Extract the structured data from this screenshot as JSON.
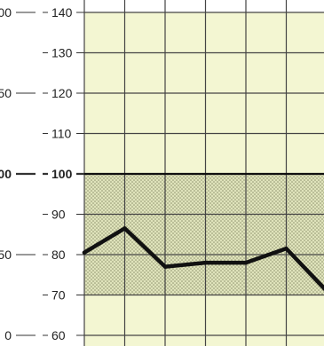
{
  "chart_data": {
    "type": "line",
    "x": [
      0,
      1,
      2,
      3,
      4,
      5,
      6
    ],
    "y": [
      80.5,
      86.5,
      77,
      78,
      78,
      81.5,
      71
    ],
    "ylim": [
      60,
      140
    ],
    "y_ticks": [
      "60",
      "70",
      "80",
      "90",
      "100",
      "110",
      "120",
      "130",
      "140"
    ],
    "left_ticks": [
      {
        "at": 60,
        "label": "0"
      },
      {
        "at": 80,
        "label": "50"
      },
      {
        "at": 100,
        "label": "00"
      },
      {
        "at": 120,
        "label": "50"
      },
      {
        "at": 140,
        "label": "00"
      }
    ],
    "reference_value": 100,
    "shaded_band": [
      70,
      100
    ],
    "grid": true,
    "colors": {
      "plot_background": "#f3f6d2",
      "band_fill": "#c2c6a2",
      "grid": "#444444",
      "line": "#111111"
    }
  }
}
